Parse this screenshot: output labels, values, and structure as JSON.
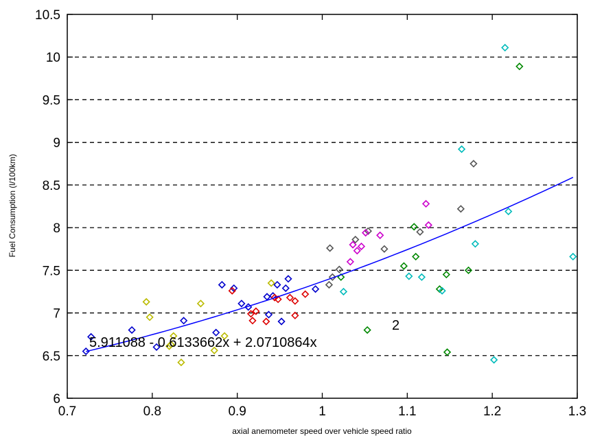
{
  "chart_data": {
    "type": "scatter",
    "title": "",
    "xlabel": "axial anemometer speed over vehicle speed ratio",
    "ylabel": "Fuel Consumption (l/100km)",
    "xlim": [
      0.7,
      1.3
    ],
    "ylim": [
      6,
      10.5
    ],
    "xticks": [
      "0.7",
      "0.8",
      "0.9",
      "1",
      "1.1",
      "1.2",
      "1.3"
    ],
    "yticks": [
      "6",
      "6.5",
      "7",
      "7.5",
      "8",
      "8.5",
      "9",
      "9.5",
      "10",
      "10.5"
    ],
    "grid": "horizontal dashed",
    "colors": {
      "fit_line": "#0000ff",
      "grid": "#000000"
    },
    "series": [
      {
        "color": "#0000cc",
        "marker": "diamond-open",
        "points": [
          [
            0.722,
            6.55
          ],
          [
            0.728,
            6.72
          ],
          [
            0.776,
            6.8
          ],
          [
            0.805,
            6.6
          ],
          [
            0.837,
            6.91
          ],
          [
            0.875,
            6.77
          ],
          [
            0.882,
            7.33
          ],
          [
            0.896,
            7.29
          ],
          [
            0.905,
            7.11
          ],
          [
            0.913,
            7.07
          ],
          [
            0.935,
            7.19
          ],
          [
            0.937,
            6.98
          ],
          [
            0.942,
            7.2
          ],
          [
            0.947,
            7.33
          ],
          [
            0.952,
            6.9
          ],
          [
            0.957,
            7.29
          ],
          [
            0.96,
            7.4
          ],
          [
            0.992,
            7.28
          ]
        ]
      },
      {
        "color": "#dd0000",
        "marker": "diamond-open",
        "points": [
          [
            0.894,
            7.26
          ],
          [
            0.916,
            6.99
          ],
          [
            0.918,
            6.91
          ],
          [
            0.922,
            7.02
          ],
          [
            0.934,
            6.9
          ],
          [
            0.944,
            7.18
          ],
          [
            0.948,
            7.16
          ],
          [
            0.962,
            7.18
          ],
          [
            0.968,
            7.14
          ],
          [
            0.968,
            6.97
          ],
          [
            0.98,
            7.22
          ]
        ]
      },
      {
        "color": "#bbbb00",
        "marker": "diamond-open",
        "points": [
          [
            0.793,
            7.13
          ],
          [
            0.797,
            6.95
          ],
          [
            0.82,
            6.61
          ],
          [
            0.822,
            6.63
          ],
          [
            0.825,
            6.73
          ],
          [
            0.834,
            6.42
          ],
          [
            0.857,
            7.11
          ],
          [
            0.873,
            6.56
          ],
          [
            0.885,
            6.73
          ],
          [
            0.94,
            7.35
          ]
        ]
      },
      {
        "color": "#008800",
        "marker": "diamond-open",
        "points": [
          [
            1.022,
            7.42
          ],
          [
            1.053,
            6.8
          ],
          [
            1.096,
            7.55
          ],
          [
            1.108,
            8.01
          ],
          [
            1.11,
            7.66
          ],
          [
            1.138,
            7.28
          ],
          [
            1.146,
            7.45
          ],
          [
            1.147,
            6.54
          ],
          [
            1.172,
            7.5
          ],
          [
            1.232,
            9.89
          ]
        ]
      },
      {
        "color": "#555555",
        "marker": "diamond-open",
        "points": [
          [
            1.008,
            7.33
          ],
          [
            1.009,
            7.76
          ],
          [
            1.012,
            7.42
          ],
          [
            1.02,
            7.51
          ],
          [
            1.039,
            7.86
          ],
          [
            1.054,
            7.96
          ],
          [
            1.073,
            7.75
          ],
          [
            1.115,
            7.95
          ],
          [
            1.163,
            8.22
          ],
          [
            1.178,
            8.75
          ]
        ]
      },
      {
        "color": "#cc00cc",
        "marker": "diamond-open",
        "points": [
          [
            1.033,
            7.6
          ],
          [
            1.036,
            7.8
          ],
          [
            1.041,
            7.73
          ],
          [
            1.046,
            7.78
          ],
          [
            1.051,
            7.94
          ],
          [
            1.068,
            7.91
          ],
          [
            1.122,
            8.28
          ],
          [
            1.125,
            8.03
          ]
        ]
      },
      {
        "color": "#00bbbb",
        "marker": "diamond-open",
        "points": [
          [
            1.025,
            7.25
          ],
          [
            1.102,
            7.43
          ],
          [
            1.117,
            7.42
          ],
          [
            1.141,
            7.26
          ],
          [
            1.164,
            8.92
          ],
          [
            1.18,
            7.81
          ],
          [
            1.202,
            6.45
          ],
          [
            1.215,
            10.11
          ],
          [
            1.219,
            8.19
          ],
          [
            1.295,
            7.66
          ]
        ]
      }
    ],
    "fit": {
      "type": "quadratic",
      "c0": 5.911088,
      "c1": -0.6133662,
      "c2": 2.0710864,
      "x_range": [
        0.722,
        1.295
      ]
    },
    "annotation": {
      "text": "5.911088 - 0.6133662x + 2.0710864x",
      "superscript": "2"
    }
  }
}
